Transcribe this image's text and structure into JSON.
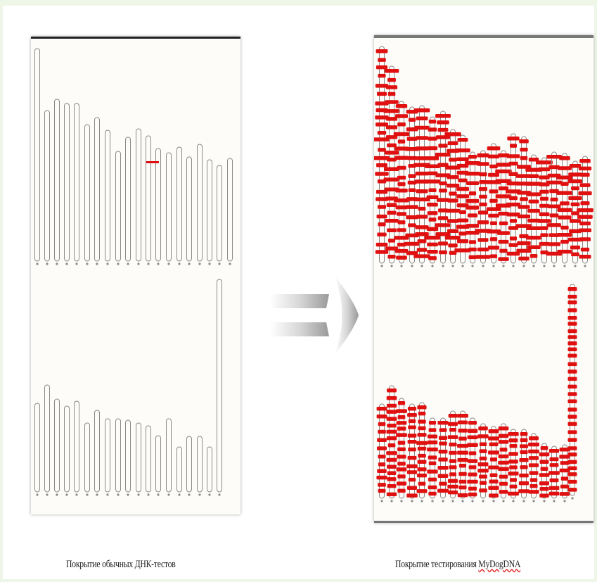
{
  "captions": {
    "left": "Покрытие обычных ДНК-тестов",
    "right_prefix": "Покрытие тестирования ",
    "right_brand": "MyDogDNA"
  },
  "colors": {
    "marker_red": "#e01010",
    "chrom_outline": "#8a8a8a",
    "page_bg": "#eef6e8"
  },
  "icons": {
    "arrow": "double-right-arrow-icon"
  },
  "diagram": {
    "standard_markers": [
      {
        "row": 1,
        "chromosome": 11,
        "count": 1
      }
    ],
    "mydogdna_coverage": "dense red markers on every chromosome; X chromosome fully covered"
  }
}
